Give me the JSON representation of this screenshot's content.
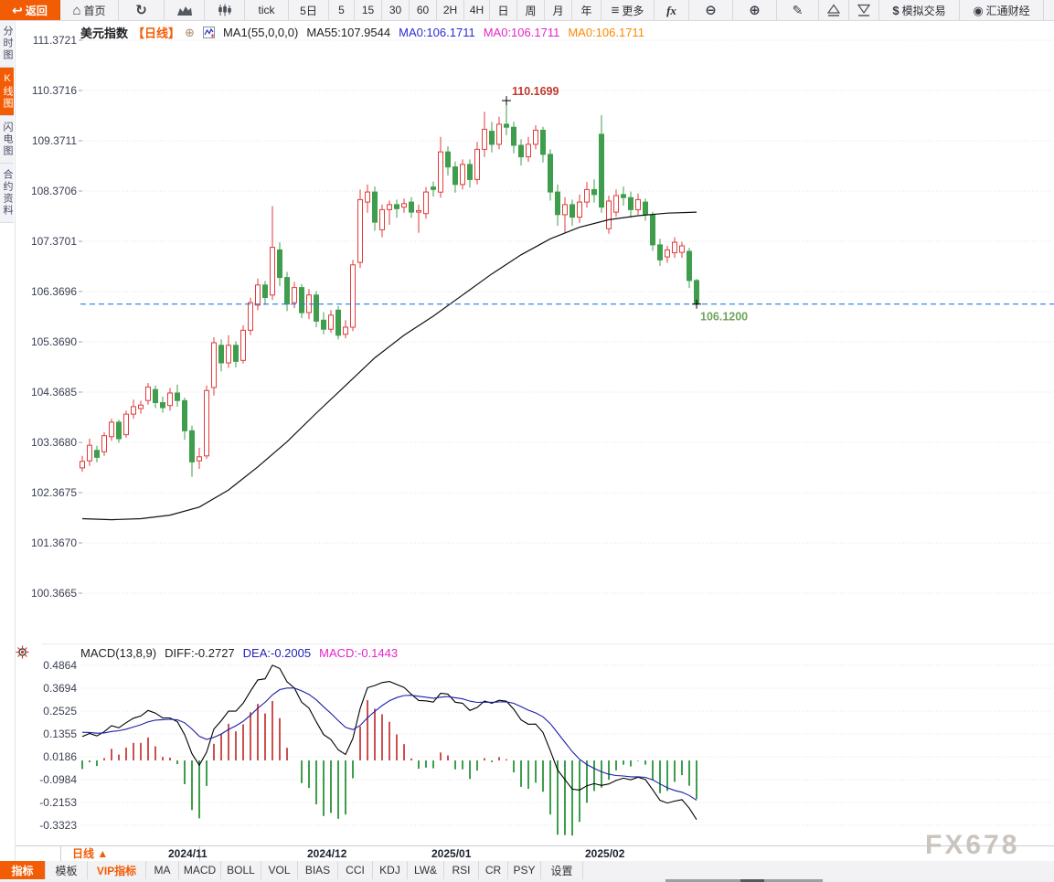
{
  "toolbar": {
    "buttons": [
      {
        "name": "back",
        "icon": "back-arrow-icon",
        "label": "返回"
      },
      {
        "name": "home",
        "icon": "home-icon",
        "label": "首页"
      },
      {
        "name": "refresh",
        "icon": "refresh-icon",
        "label": ""
      },
      {
        "name": "area-chart",
        "icon": "area-chart-icon",
        "label": ""
      },
      {
        "name": "candlestick",
        "icon": "candlestick-icon",
        "label": ""
      },
      {
        "name": "tick",
        "label": "tick"
      },
      {
        "name": "five-day",
        "label": "5日"
      },
      {
        "name": "min-5",
        "label": "5"
      },
      {
        "name": "min-15",
        "label": "15"
      },
      {
        "name": "min-30",
        "label": "30"
      },
      {
        "name": "min-60",
        "label": "60"
      },
      {
        "name": "hour-2",
        "label": "2H"
      },
      {
        "name": "hour-4",
        "label": "4H"
      },
      {
        "name": "day",
        "label": "日"
      },
      {
        "name": "week",
        "label": "周"
      },
      {
        "name": "month",
        "label": "月"
      },
      {
        "name": "year",
        "label": "年"
      },
      {
        "name": "more",
        "icon": "menu-icon",
        "label": "更多"
      },
      {
        "name": "indicator-fx",
        "icon": "fx-icon",
        "label": ""
      },
      {
        "name": "zoom-out",
        "icon": "zoom-out-icon",
        "label": ""
      },
      {
        "name": "zoom-in",
        "icon": "zoom-in-icon",
        "label": ""
      },
      {
        "name": "draw",
        "icon": "pencil-icon",
        "label": ""
      },
      {
        "name": "mark-up",
        "icon": "triangle-up-icon",
        "label": ""
      },
      {
        "name": "mark-down",
        "icon": "triangle-down-icon",
        "label": ""
      },
      {
        "name": "sim-trade",
        "icon": "dollar-icon",
        "label": "模拟交易"
      },
      {
        "name": "huitong",
        "icon": "huitong-logo-icon",
        "label": "汇通财经"
      },
      {
        "name": "calendar-cut",
        "label": "财"
      }
    ]
  },
  "sidebar": {
    "tabs": [
      {
        "label": "分时图",
        "active": false
      },
      {
        "label": "K线图",
        "active": true
      },
      {
        "label": "闪电图",
        "active": false
      },
      {
        "label": "合约资料",
        "active": false
      }
    ]
  },
  "header": {
    "symbol": "美元指数",
    "period": "【日线】",
    "ma1": "MA1(55,0,0,0)",
    "ma55": "MA55:107.9544",
    "ma0_blue": "MA0:106.1711",
    "ma0_magenta": "MA0:106.1711",
    "ma0_orange": "MA0:106.1711"
  },
  "macd_header": {
    "title": "MACD(13,8,9)",
    "diff": "DIFF:-0.2727",
    "dea": "DEA:-0.2005",
    "macd": "MACD:-0.1443"
  },
  "bottom": {
    "period_selector": "日线 ▲",
    "tabs": [
      {
        "label": "指标",
        "active": true
      },
      {
        "label": "模板"
      },
      {
        "label": "VIP指标",
        "vip": true
      },
      {
        "label": "MA"
      },
      {
        "label": "MACD"
      },
      {
        "label": "BOLL"
      },
      {
        "label": "VOL"
      },
      {
        "label": "BIAS"
      },
      {
        "label": "CCI"
      },
      {
        "label": "KDJ"
      },
      {
        "label": "LW&"
      },
      {
        "label": "RSI"
      },
      {
        "label": "CR"
      },
      {
        "label": "PSY"
      },
      {
        "label": "设置"
      }
    ]
  },
  "watermark": "FX678",
  "colors": {
    "accent": "#f25c05",
    "candle_up": "#e23b3b",
    "candle_down": "#3f9e4d",
    "price_dash_line": "#1f7fe8",
    "last_price_label": "#6fa35c",
    "high_label": "#c0392b",
    "ma55_line": "#111111",
    "diff_line": "#000000",
    "dea_line": "#1d1da8",
    "axis_text": "#3a3f52",
    "month_text": "#1b2330"
  },
  "chart_data": {
    "type": "candlestick",
    "title": "美元指数 日线",
    "y_axis": [
      "111.3721",
      "110.3716",
      "109.3711",
      "108.3706",
      "107.3701",
      "106.3696",
      "105.3690",
      "104.3685",
      "103.3680",
      "102.3675",
      "101.3670",
      "100.3665"
    ],
    "x_axis": [
      {
        "label": "2024/11",
        "i": 15
      },
      {
        "label": "2024/12",
        "i": 34
      },
      {
        "label": "2025/01",
        "i": 51
      },
      {
        "label": "2025/02",
        "i": 72
      }
    ],
    "last_price": 106.12,
    "high_annotation": "110.1699",
    "last_annotation": "106.1200",
    "candles": [
      [
        102.86,
        103.1,
        102.78,
        102.99
      ],
      [
        103.0,
        103.44,
        102.9,
        103.31
      ],
      [
        103.21,
        103.3,
        102.97,
        103.07
      ],
      [
        103.18,
        103.57,
        103.1,
        103.5
      ],
      [
        103.48,
        103.84,
        103.4,
        103.77
      ],
      [
        103.77,
        103.82,
        103.36,
        103.44
      ],
      [
        103.52,
        104.0,
        103.46,
        103.93
      ],
      [
        103.93,
        104.22,
        103.84,
        104.08
      ],
      [
        104.04,
        104.2,
        103.94,
        104.11
      ],
      [
        104.2,
        104.55,
        104.12,
        104.47
      ],
      [
        104.42,
        104.5,
        104.05,
        104.16
      ],
      [
        104.16,
        104.28,
        103.96,
        104.06
      ],
      [
        104.1,
        104.45,
        104.0,
        104.35
      ],
      [
        104.35,
        104.52,
        104.08,
        104.2
      ],
      [
        104.2,
        104.26,
        103.42,
        103.6
      ],
      [
        103.6,
        103.7,
        102.68,
        102.98
      ],
      [
        103.0,
        103.26,
        102.84,
        103.08
      ],
      [
        103.1,
        104.5,
        103.04,
        104.4
      ],
      [
        104.46,
        105.46,
        104.3,
        105.35
      ],
      [
        105.3,
        105.42,
        104.78,
        104.95
      ],
      [
        104.95,
        105.5,
        104.85,
        105.3
      ],
      [
        105.3,
        105.38,
        104.86,
        104.98
      ],
      [
        105.0,
        105.7,
        104.94,
        105.6
      ],
      [
        105.6,
        106.25,
        105.5,
        106.15
      ],
      [
        106.1,
        106.63,
        106.0,
        106.5
      ],
      [
        106.5,
        106.58,
        106.1,
        106.25
      ],
      [
        106.3,
        108.07,
        106.2,
        107.25
      ],
      [
        107.2,
        107.35,
        106.48,
        106.65
      ],
      [
        106.65,
        106.76,
        105.98,
        106.12
      ],
      [
        106.15,
        106.56,
        106.04,
        106.45
      ],
      [
        106.45,
        106.52,
        105.84,
        105.95
      ],
      [
        105.95,
        106.42,
        105.82,
        106.3
      ],
      [
        106.3,
        106.38,
        105.66,
        105.78
      ],
      [
        105.8,
        105.96,
        105.52,
        105.62
      ],
      [
        105.62,
        106.0,
        105.55,
        105.9
      ],
      [
        106.0,
        106.08,
        105.42,
        105.5
      ],
      [
        105.52,
        105.8,
        105.44,
        105.66
      ],
      [
        105.66,
        107.0,
        105.58,
        106.9
      ],
      [
        106.95,
        108.4,
        106.84,
        108.2
      ],
      [
        108.15,
        108.5,
        107.94,
        108.35
      ],
      [
        108.35,
        108.46,
        107.58,
        107.75
      ],
      [
        107.6,
        108.1,
        107.45,
        108.0
      ],
      [
        108.0,
        108.18,
        107.7,
        108.1
      ],
      [
        108.1,
        108.2,
        107.84,
        108.02
      ],
      [
        108.05,
        108.22,
        107.94,
        108.12
      ],
      [
        108.15,
        108.25,
        107.84,
        107.95
      ],
      [
        107.95,
        108.1,
        107.54,
        107.98
      ],
      [
        107.92,
        108.45,
        107.82,
        108.35
      ],
      [
        108.45,
        108.56,
        108.26,
        108.4
      ],
      [
        108.35,
        109.45,
        108.24,
        109.15
      ],
      [
        109.15,
        109.26,
        108.68,
        108.85
      ],
      [
        108.85,
        108.96,
        108.34,
        108.5
      ],
      [
        108.5,
        109.0,
        108.4,
        108.9
      ],
      [
        108.9,
        109.0,
        108.44,
        108.6
      ],
      [
        108.6,
        109.35,
        108.5,
        109.2
      ],
      [
        109.2,
        109.95,
        109.05,
        109.6
      ],
      [
        109.56,
        109.75,
        109.14,
        109.3
      ],
      [
        109.3,
        109.85,
        109.2,
        109.7
      ],
      [
        109.7,
        110.17,
        109.48,
        109.64
      ],
      [
        109.64,
        109.75,
        109.12,
        109.28
      ],
      [
        109.28,
        109.4,
        108.88,
        109.05
      ],
      [
        109.05,
        109.45,
        108.95,
        109.3
      ],
      [
        109.3,
        109.68,
        109.2,
        109.58
      ],
      [
        109.58,
        109.65,
        108.94,
        109.1
      ],
      [
        109.1,
        109.2,
        108.18,
        108.35
      ],
      [
        108.35,
        108.5,
        107.68,
        107.9
      ],
      [
        107.9,
        108.25,
        107.54,
        108.1
      ],
      [
        108.1,
        108.2,
        107.68,
        107.85
      ],
      [
        107.85,
        108.3,
        107.74,
        108.15
      ],
      [
        108.15,
        108.55,
        108.04,
        108.4
      ],
      [
        108.4,
        108.6,
        108.14,
        108.3
      ],
      [
        109.5,
        109.88,
        107.94,
        108.05
      ],
      [
        107.62,
        108.28,
        107.52,
        108.17
      ],
      [
        107.95,
        108.4,
        107.86,
        108.28
      ],
      [
        108.3,
        108.46,
        108.08,
        108.24
      ],
      [
        108.24,
        108.36,
        107.84,
        108.0
      ],
      [
        108.0,
        108.32,
        107.9,
        108.2
      ],
      [
        108.15,
        108.22,
        107.78,
        107.9
      ],
      [
        107.9,
        107.96,
        107.18,
        107.3
      ],
      [
        107.3,
        107.42,
        106.88,
        107.0
      ],
      [
        107.06,
        107.28,
        106.94,
        107.2
      ],
      [
        107.14,
        107.45,
        107.04,
        107.35
      ],
      [
        107.15,
        107.36,
        107.04,
        107.28
      ],
      [
        107.17,
        107.24,
        106.44,
        106.59
      ],
      [
        106.59,
        106.62,
        106.06,
        106.12
      ]
    ],
    "ma55_points": [
      [
        0,
        101.85
      ],
      [
        4,
        101.83
      ],
      [
        8,
        101.85
      ],
      [
        12,
        101.92
      ],
      [
        16,
        102.08
      ],
      [
        20,
        102.42
      ],
      [
        24,
        102.88
      ],
      [
        28,
        103.38
      ],
      [
        32,
        103.95
      ],
      [
        36,
        104.5
      ],
      [
        40,
        105.05
      ],
      [
        44,
        105.5
      ],
      [
        48,
        105.88
      ],
      [
        52,
        106.3
      ],
      [
        56,
        106.72
      ],
      [
        60,
        107.1
      ],
      [
        64,
        107.42
      ],
      [
        68,
        107.65
      ],
      [
        72,
        107.8
      ],
      [
        76,
        107.88
      ],
      [
        80,
        107.93
      ],
      [
        84,
        107.95
      ]
    ],
    "macd": {
      "params": [
        13,
        8,
        9
      ],
      "y_axis": [
        "0.4864",
        "0.3694",
        "0.2525",
        "0.1355",
        "0.0186",
        "-0.0984",
        "-0.2153",
        "-0.3323"
      ],
      "diff": -0.2727,
      "dea": -0.2005,
      "macd": -0.1443
    }
  }
}
